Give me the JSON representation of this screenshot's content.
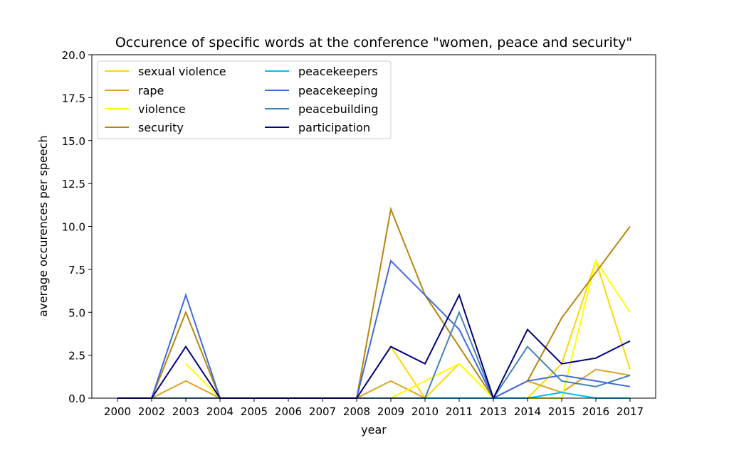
{
  "chart_data": {
    "type": "line",
    "title": "Occurence of specific words at the conference \"women, peace and security\"",
    "xlabel": "year",
    "ylabel": "average occurences per speech",
    "ylim": [
      0,
      20
    ],
    "yticks": [
      "0.0",
      "2.5",
      "5.0",
      "7.5",
      "10.0",
      "12.5",
      "15.0",
      "17.5",
      "20.0"
    ],
    "categories": [
      "2000",
      "2002",
      "2003",
      "2004",
      "2005",
      "2006",
      "2007",
      "2008",
      "2009",
      "2010",
      "2011",
      "2013",
      "2014",
      "2015",
      "2016",
      "2017"
    ],
    "grid": false,
    "legend_position": "top-left",
    "series": [
      {
        "name": "sexual violence",
        "color": "#ffd700",
        "values": [
          0,
          0,
          0,
          0,
          0,
          0,
          0,
          0,
          3,
          0,
          2,
          0,
          0,
          2,
          8,
          1.67
        ]
      },
      {
        "name": "rape",
        "color": "#daa520",
        "values": [
          0,
          0,
          1,
          0,
          0,
          0,
          0,
          0,
          1,
          0,
          0,
          0,
          1,
          0.33,
          1.67,
          1.33
        ]
      },
      {
        "name": "violence",
        "color": "#ffff00",
        "values": [
          null,
          null,
          2,
          0,
          0,
          0,
          0,
          0,
          0,
          1,
          2,
          0,
          0,
          0,
          8,
          5
        ]
      },
      {
        "name": "security",
        "color": "#b8860b",
        "values": [
          0,
          0,
          5,
          0,
          0,
          0,
          0,
          0,
          11,
          6,
          3,
          0,
          1,
          4.67,
          7.33,
          10
        ]
      },
      {
        "name": "peacekeepers",
        "color": "#00bfff",
        "values": [
          0,
          0,
          0,
          0,
          0,
          0,
          0,
          0,
          0,
          0,
          0,
          0,
          0,
          0.33,
          0,
          0
        ]
      },
      {
        "name": "peacekeeping",
        "color": "#4169e1",
        "values": [
          0,
          0,
          6,
          0,
          0,
          0,
          0,
          0,
          8,
          6,
          4,
          0,
          1,
          1.33,
          1,
          0.67
        ]
      },
      {
        "name": "peacebuilding",
        "color": "#4682b4",
        "values": [
          0,
          0,
          0,
          0,
          0,
          0,
          0,
          0,
          0,
          0,
          5,
          0,
          3,
          1,
          0.67,
          1.33
        ]
      },
      {
        "name": "participation",
        "color": "#000080",
        "values": [
          0,
          0,
          3,
          0,
          0,
          0,
          0,
          0,
          3,
          2,
          6,
          0,
          4,
          2,
          2.33,
          3.33
        ]
      }
    ]
  }
}
